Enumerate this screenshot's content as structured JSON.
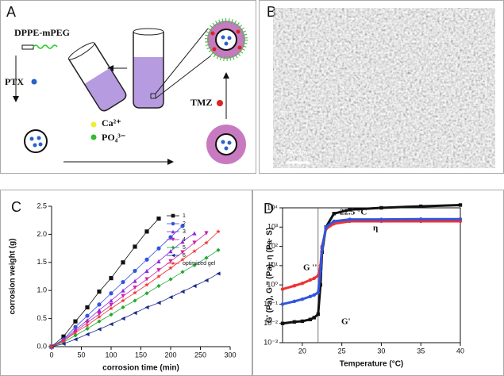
{
  "panel_a": {
    "label": "A",
    "lipid": "DPPE-mPEG",
    "ptx": "PTX",
    "tmz": "TMZ",
    "ca": "Ca²⁺",
    "po4": "PO₄³⁻"
  },
  "panel_b": {
    "label": "B",
    "scale_bar": "50 nm"
  },
  "chart_data": [
    {
      "type": "line",
      "panel_label": "C",
      "frame": "open",
      "xlabel": "corrosion time (min)",
      "ylabel": "corrosion weight (g)",
      "x": [
        0,
        20,
        40,
        60,
        80,
        100,
        120,
        140,
        160,
        180,
        200,
        220,
        240,
        260,
        280
      ],
      "xlim": [
        0,
        300
      ],
      "xticks": [
        0,
        50,
        100,
        150,
        200,
        250,
        300
      ],
      "ylim": [
        0,
        2.5
      ],
      "yticks": [
        {
          "value": 0,
          "label": "0.0"
        },
        {
          "value": 0.5,
          "label": "0.5"
        },
        {
          "value": 1,
          "label": "1.0"
        },
        {
          "value": 1.5,
          "label": "1.5"
        },
        {
          "value": 2,
          "label": "2.0"
        },
        {
          "value": 2.5,
          "label": "2.5"
        }
      ],
      "legend": "upper right",
      "series": [
        {
          "name": "1",
          "color": "#111111",
          "marker": "square",
          "values": [
            0,
            0.18,
            0.45,
            0.7,
            0.98,
            1.22,
            1.5,
            1.78,
            2.05,
            2.28,
            null,
            null,
            null,
            null,
            null
          ]
        },
        {
          "name": "2",
          "color": "#3355dd",
          "marker": "circle",
          "values": [
            0,
            0.13,
            0.35,
            0.55,
            0.75,
            0.95,
            1.15,
            1.35,
            1.55,
            1.75,
            1.95,
            2.15,
            null,
            null,
            null
          ]
        },
        {
          "name": "3",
          "color": "#8a2be2",
          "marker": "triangle-up",
          "values": [
            0,
            0.12,
            0.3,
            0.47,
            0.65,
            0.82,
            1.0,
            1.17,
            1.35,
            1.52,
            1.7,
            1.87,
            2.02,
            null,
            null
          ]
        },
        {
          "name": "4",
          "color": "#cc22aa",
          "marker": "triangle-down",
          "values": [
            0,
            0.1,
            0.27,
            0.43,
            0.58,
            0.74,
            0.9,
            1.05,
            1.2,
            1.36,
            1.52,
            1.68,
            1.85,
            2.02,
            null
          ]
        },
        {
          "name": "5",
          "color": "#22aa33",
          "marker": "diamond",
          "values": [
            0,
            0.08,
            0.2,
            0.32,
            0.45,
            0.57,
            0.7,
            0.82,
            0.95,
            1.08,
            1.2,
            1.33,
            1.45,
            1.58,
            1.72
          ]
        },
        {
          "name": "6",
          "color": "#1a2a88",
          "marker": "triangle-left",
          "values": [
            0,
            0.05,
            0.13,
            0.22,
            0.31,
            0.4,
            0.5,
            0.6,
            0.7,
            0.78,
            0.88,
            0.98,
            1.08,
            1.18,
            1.3
          ]
        },
        {
          "name": "optimized gel",
          "color": "#ee3333",
          "marker": "star",
          "values": [
            0,
            0.1,
            0.25,
            0.38,
            0.53,
            0.68,
            0.82,
            0.96,
            1.1,
            1.25,
            1.4,
            1.55,
            1.7,
            1.85,
            2.05
          ]
        }
      ]
    },
    {
      "type": "line",
      "panel_label": "D",
      "frame": "box",
      "log_y": true,
      "xlabel": "Temperature (°C)",
      "ylabel": "G' (Pa), G '' (Pa), η (Pa· S)",
      "x": [
        17.5,
        19,
        20,
        21,
        21.5,
        22,
        22.3,
        22.5,
        23,
        24,
        26,
        30,
        35,
        40
      ],
      "xlim": [
        17.5,
        40
      ],
      "xticks": [
        20,
        25,
        30,
        35,
        40
      ],
      "ylim": [
        0.001,
        10000
      ],
      "yticks": [
        {
          "value": 10000,
          "label": "10⁴"
        },
        {
          "value": 1000,
          "label": "10³"
        },
        {
          "value": 100,
          "label": "10²"
        },
        {
          "value": 10,
          "label": "10¹"
        },
        {
          "value": 1,
          "label": "10⁰"
        },
        {
          "value": 0.1,
          "label": "10⁻¹"
        },
        {
          "value": 0.01,
          "label": "10⁻²"
        },
        {
          "value": 0.001,
          "label": "10⁻³"
        }
      ],
      "vline": 22,
      "annotations": [
        "22.5 °C",
        "G ''",
        "η",
        "G'"
      ],
      "series": [
        {
          "name": "G'",
          "color": "#111111",
          "marker": "square",
          "values": [
            0.01,
            0.012,
            0.013,
            0.016,
            0.02,
            0.03,
            1,
            50,
            1000,
            5000,
            8000,
            10000,
            12000,
            14000
          ]
        },
        {
          "name": "G ''",
          "color": "#ee3333",
          "marker": "circle",
          "values": [
            0.6,
            0.9,
            1.2,
            1.8,
            2.2,
            3,
            10,
            100,
            800,
            1500,
            2000,
            2000,
            2000,
            2000
          ]
        },
        {
          "name": "η",
          "color": "#3355dd",
          "marker": "circle",
          "values": [
            0.1,
            0.14,
            0.18,
            0.25,
            0.3,
            0.4,
            5,
            80,
            1000,
            2000,
            2500,
            2500,
            2600,
            2600
          ]
        }
      ]
    }
  ]
}
